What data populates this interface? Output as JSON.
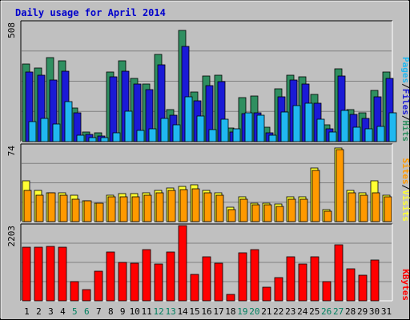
{
  "title": "Daily usage for April 2014",
  "colors": {
    "background": "#c0c0c0",
    "plot_bg": "#c0c0c0",
    "title": "#0000cc",
    "hits": "#2f8f60",
    "files": "#1a1ad6",
    "pages": "#20b8f0",
    "visits": "#ffff33",
    "sites": "#ff9900",
    "kbytes": "#ff0000",
    "weekend_tick": "#008060"
  },
  "chart_data": [
    {
      "type": "bar",
      "name": "hits-files-pages",
      "categories": [
        "1",
        "2",
        "3",
        "4",
        "5",
        "6",
        "7",
        "8",
        "9",
        "10",
        "11",
        "12",
        "13",
        "14",
        "15",
        "16",
        "17",
        "18",
        "19",
        "20",
        "21",
        "22",
        "23",
        "24",
        "25",
        "26",
        "27",
        "28",
        "29",
        "30",
        "31"
      ],
      "weekend_days": [
        "5",
        "6",
        "12",
        "13",
        "19",
        "20",
        "26",
        "27"
      ],
      "y_max_label": "508",
      "ylim": [
        0,
        508
      ],
      "series": [
        {
          "name": "Hits",
          "color_key": "hits",
          "values": [
            330,
            312,
            358,
            346,
            142,
            40,
            36,
            296,
            344,
            270,
            244,
            370,
            136,
            475,
            212,
            278,
            282,
            59,
            188,
            196,
            60,
            226,
            284,
            276,
            200,
            70,
            310,
            138,
            124,
            218,
            298
          ]
        },
        {
          "name": "Files",
          "color_key": "files",
          "values": [
            296,
            282,
            262,
            300,
            124,
            30,
            24,
            275,
            300,
            247,
            222,
            327,
            114,
            407,
            174,
            239,
            256,
            42,
            120,
            124,
            38,
            192,
            264,
            244,
            164,
            54,
            278,
            116,
            98,
            190,
            268
          ]
        },
        {
          "name": "Pages",
          "color_key": "pages",
          "values": [
            84,
            100,
            76,
            172,
            28,
            18,
            16,
            38,
            128,
            48,
            54,
            98,
            70,
            190,
            108,
            52,
            96,
            54,
            124,
            112,
            28,
            126,
            154,
            162,
            94,
            40,
            132,
            60,
            54,
            66,
            124
          ]
        }
      ],
      "legend": [
        {
          "label": "Hits",
          "color_key": "hits"
        },
        {
          "label": "Files",
          "color_key": "files"
        },
        {
          "label": "Pages",
          "color_key": "pages"
        }
      ]
    },
    {
      "type": "bar",
      "name": "visits-sites",
      "y_max_label": "74",
      "ylim": [
        0,
        74
      ],
      "series": [
        {
          "name": "Visits",
          "color_key": "visits",
          "values": [
            40,
            30,
            28,
            28,
            26,
            20,
            18,
            26,
            27,
            27,
            28,
            30,
            33,
            34,
            36,
            30,
            28,
            14,
            24,
            18,
            18,
            17,
            24,
            24,
            52,
            12,
            72,
            30,
            28,
            40,
            26
          ]
        },
        {
          "name": "Sites",
          "color_key": "sites",
          "values": [
            30,
            26,
            28,
            26,
            22,
            20,
            18,
            24,
            24,
            24,
            26,
            28,
            30,
            31,
            32,
            28,
            26,
            12,
            22,
            16,
            16,
            15,
            22,
            22,
            50,
            10,
            70,
            28,
            26,
            28,
            24
          ]
        }
      ],
      "legend": [
        {
          "label": "Visits",
          "color_key": "visits"
        },
        {
          "label": "Sites",
          "color_key": "sites"
        }
      ]
    },
    {
      "type": "bar",
      "name": "kbytes",
      "y_max_label": "2203",
      "ylim": [
        0,
        2203
      ],
      "series": [
        {
          "name": "KBytes",
          "color_key": "kbytes",
          "values": [
            1560,
            1560,
            1600,
            1560,
            570,
            320,
            860,
            1420,
            1120,
            1100,
            1500,
            1070,
            1430,
            2203,
            780,
            1280,
            1100,
            180,
            1400,
            1500,
            400,
            680,
            1280,
            1080,
            1300,
            570,
            1640,
            930,
            760,
            1200,
            0
          ]
        }
      ],
      "legend": [
        {
          "label": "KBytes",
          "color_key": "kbytes"
        }
      ]
    }
  ]
}
